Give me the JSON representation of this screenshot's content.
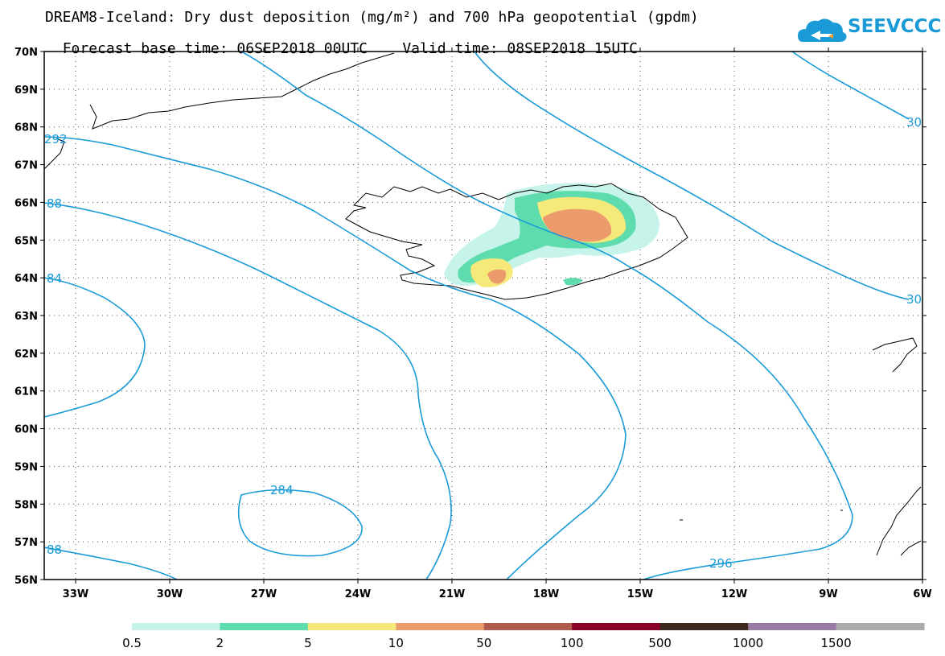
{
  "title_line1": "DREAM8-Iceland: Dry dust deposition (mg/m²) and 700 hPa geopotential (gpdm)",
  "title_line2_left": "Forecast base time: 06SEP2018 00UTC",
  "title_line2_right": "Valid time: 08SEP2018 15UTC",
  "logo_text": "SEEVCCC",
  "colors": {
    "contour": "#1a9bd7",
    "brand": "#1a9bd7"
  },
  "chart_data": {
    "type": "heatmap",
    "lat_ticks": [
      "70N",
      "69N",
      "68N",
      "67N",
      "66N",
      "65N",
      "64N",
      "63N",
      "62N",
      "61N",
      "60N",
      "59N",
      "58N",
      "57N",
      "56N"
    ],
    "lon_ticks": [
      "33W",
      "30W",
      "27W",
      "24W",
      "21W",
      "18W",
      "15W",
      "12W",
      "9W",
      "6W"
    ],
    "lat_range": [
      56,
      70
    ],
    "lon_range": [
      -34,
      -6
    ],
    "contour_labels": [
      "292",
      "88",
      "84",
      "284",
      "88",
      "296",
      "30",
      "30"
    ],
    "legend": {
      "breaks": [
        "0.5",
        "2",
        "5",
        "10",
        "50",
        "100",
        "500",
        "1000",
        "1500"
      ],
      "colors": [
        "#c6f4ea",
        "#5fdcad",
        "#f5e97a",
        "#ec9b6c",
        "#b05a4b",
        "#8b0027",
        "#3c2a1f",
        "#9a7ba6",
        "#ababab"
      ]
    }
  }
}
